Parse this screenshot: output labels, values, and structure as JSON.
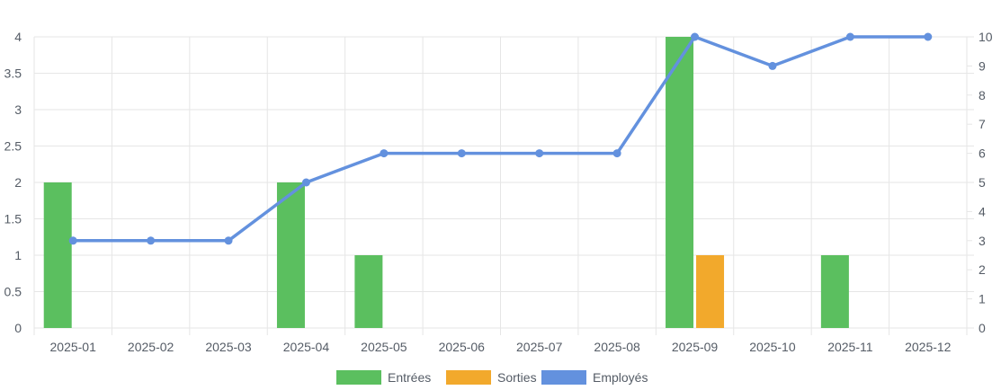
{
  "chart_data": {
    "type": "bar",
    "categories": [
      "2025-01",
      "2025-02",
      "2025-03",
      "2025-04",
      "2025-05",
      "2025-06",
      "2025-07",
      "2025-08",
      "2025-09",
      "2025-10",
      "2025-11",
      "2025-12"
    ],
    "series": [
      {
        "name": "Entrées",
        "type": "bar",
        "axis": "left",
        "color": "#5bbf5f",
        "values": [
          2,
          0,
          0,
          2,
          1,
          0,
          0,
          0,
          4,
          0,
          1,
          0
        ]
      },
      {
        "name": "Sorties",
        "type": "bar",
        "axis": "left",
        "color": "#f2a92c",
        "values": [
          0,
          0,
          0,
          0,
          0,
          0,
          0,
          0,
          1,
          0,
          0,
          0
        ]
      },
      {
        "name": "Employés",
        "type": "line",
        "axis": "right",
        "color": "#6391de",
        "values": [
          3,
          3,
          3,
          5,
          6,
          6,
          6,
          6,
          10,
          9,
          10,
          10
        ]
      }
    ],
    "y_left": {
      "min": 0,
      "max": 4,
      "ticks": [
        "0",
        "0.5",
        "1",
        "1.5",
        "2",
        "2.5",
        "3",
        "3.5",
        "4"
      ]
    },
    "y_right": {
      "min": 0,
      "max": 10,
      "ticks": [
        "0",
        "1",
        "2",
        "3",
        "4",
        "5",
        "6",
        "7",
        "8",
        "9",
        "10"
      ]
    },
    "grid": true,
    "legend_position": "bottom"
  }
}
